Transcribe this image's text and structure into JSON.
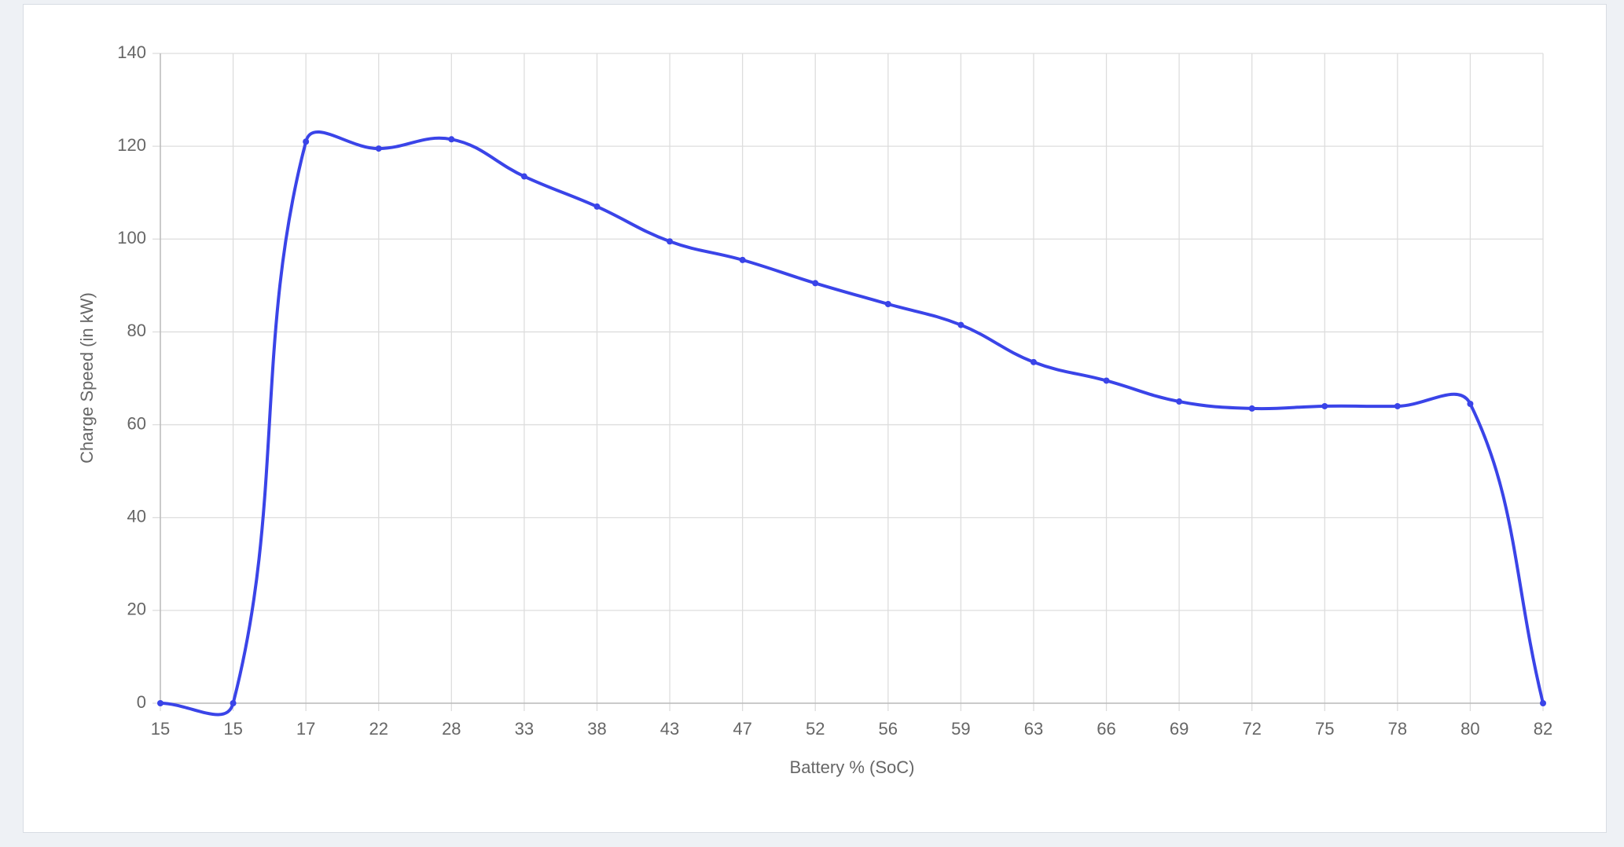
{
  "chart_data": {
    "type": "line",
    "x_label": "Battery % (SoC)",
    "y_label": "Charge Speed (in kW)",
    "categories": [
      "15",
      "15",
      "17",
      "22",
      "28",
      "33",
      "38",
      "43",
      "47",
      "52",
      "56",
      "59",
      "63",
      "66",
      "69",
      "72",
      "75",
      "78",
      "80",
      "82"
    ],
    "series": [
      {
        "color": "#3a44e8",
        "values": [
          0,
          0,
          121,
          119.5,
          121.5,
          113.5,
          107,
          99.5,
          95.5,
          90.5,
          86,
          81.5,
          73.5,
          69.5,
          65,
          63.5,
          64,
          64,
          64.5,
          0
        ]
      }
    ],
    "ylim": [
      0,
      140
    ],
    "yticks": [
      0,
      20,
      40,
      60,
      80,
      100,
      120,
      140
    ],
    "grid": true
  }
}
